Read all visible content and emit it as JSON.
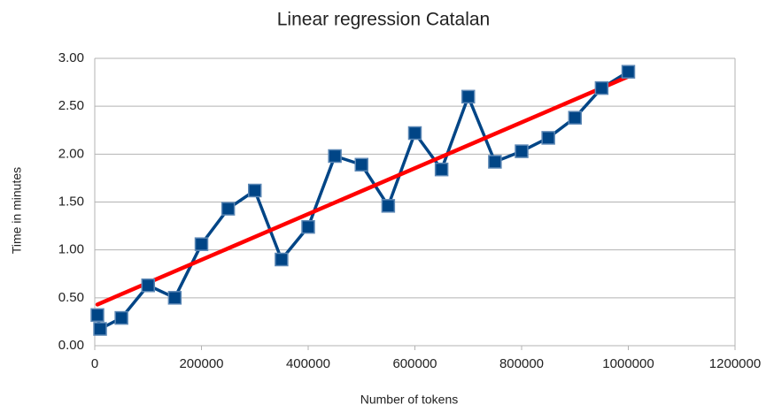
{
  "chart_data": {
    "type": "line",
    "title": "Linear regression Catalan",
    "x_label": "Number of tokens",
    "y_label": "Time in minutes",
    "x": [
      5000,
      10000,
      50000,
      100000,
      150000,
      200000,
      250000,
      300000,
      350000,
      400000,
      450000,
      500000,
      550000,
      600000,
      650000,
      700000,
      750000,
      800000,
      850000,
      900000,
      950000,
      1000000
    ],
    "series": [
      {
        "color": "#004586",
        "values": [
          0.32,
          0.175,
          0.29,
          0.63,
          0.5,
          1.06,
          1.43,
          1.62,
          0.9,
          1.24,
          1.98,
          1.89,
          1.46,
          2.22,
          1.84,
          2.6,
          1.92,
          2.03,
          2.17,
          2.38,
          2.69,
          2.86
        ]
      }
    ],
    "trendline": {
      "color": "#ff0000",
      "x": [
        5000,
        1000000
      ],
      "values": [
        0.43,
        2.81
      ]
    },
    "xlim": [
      0,
      1200000
    ],
    "xticks": [
      0,
      200000,
      400000,
      600000,
      800000,
      1000000,
      1200000
    ],
    "ylim": [
      0,
      3
    ],
    "yticks": [
      {
        "value": 0,
        "label": "0.00"
      },
      {
        "value": 0.5,
        "label": "0.50"
      },
      {
        "value": 1,
        "label": "1.00"
      },
      {
        "value": 1.5,
        "label": "1.50"
      },
      {
        "value": 2,
        "label": "2.00"
      },
      {
        "value": 2.5,
        "label": "2.50"
      },
      {
        "value": 3,
        "label": "3.00"
      }
    ],
    "grid": true
  }
}
